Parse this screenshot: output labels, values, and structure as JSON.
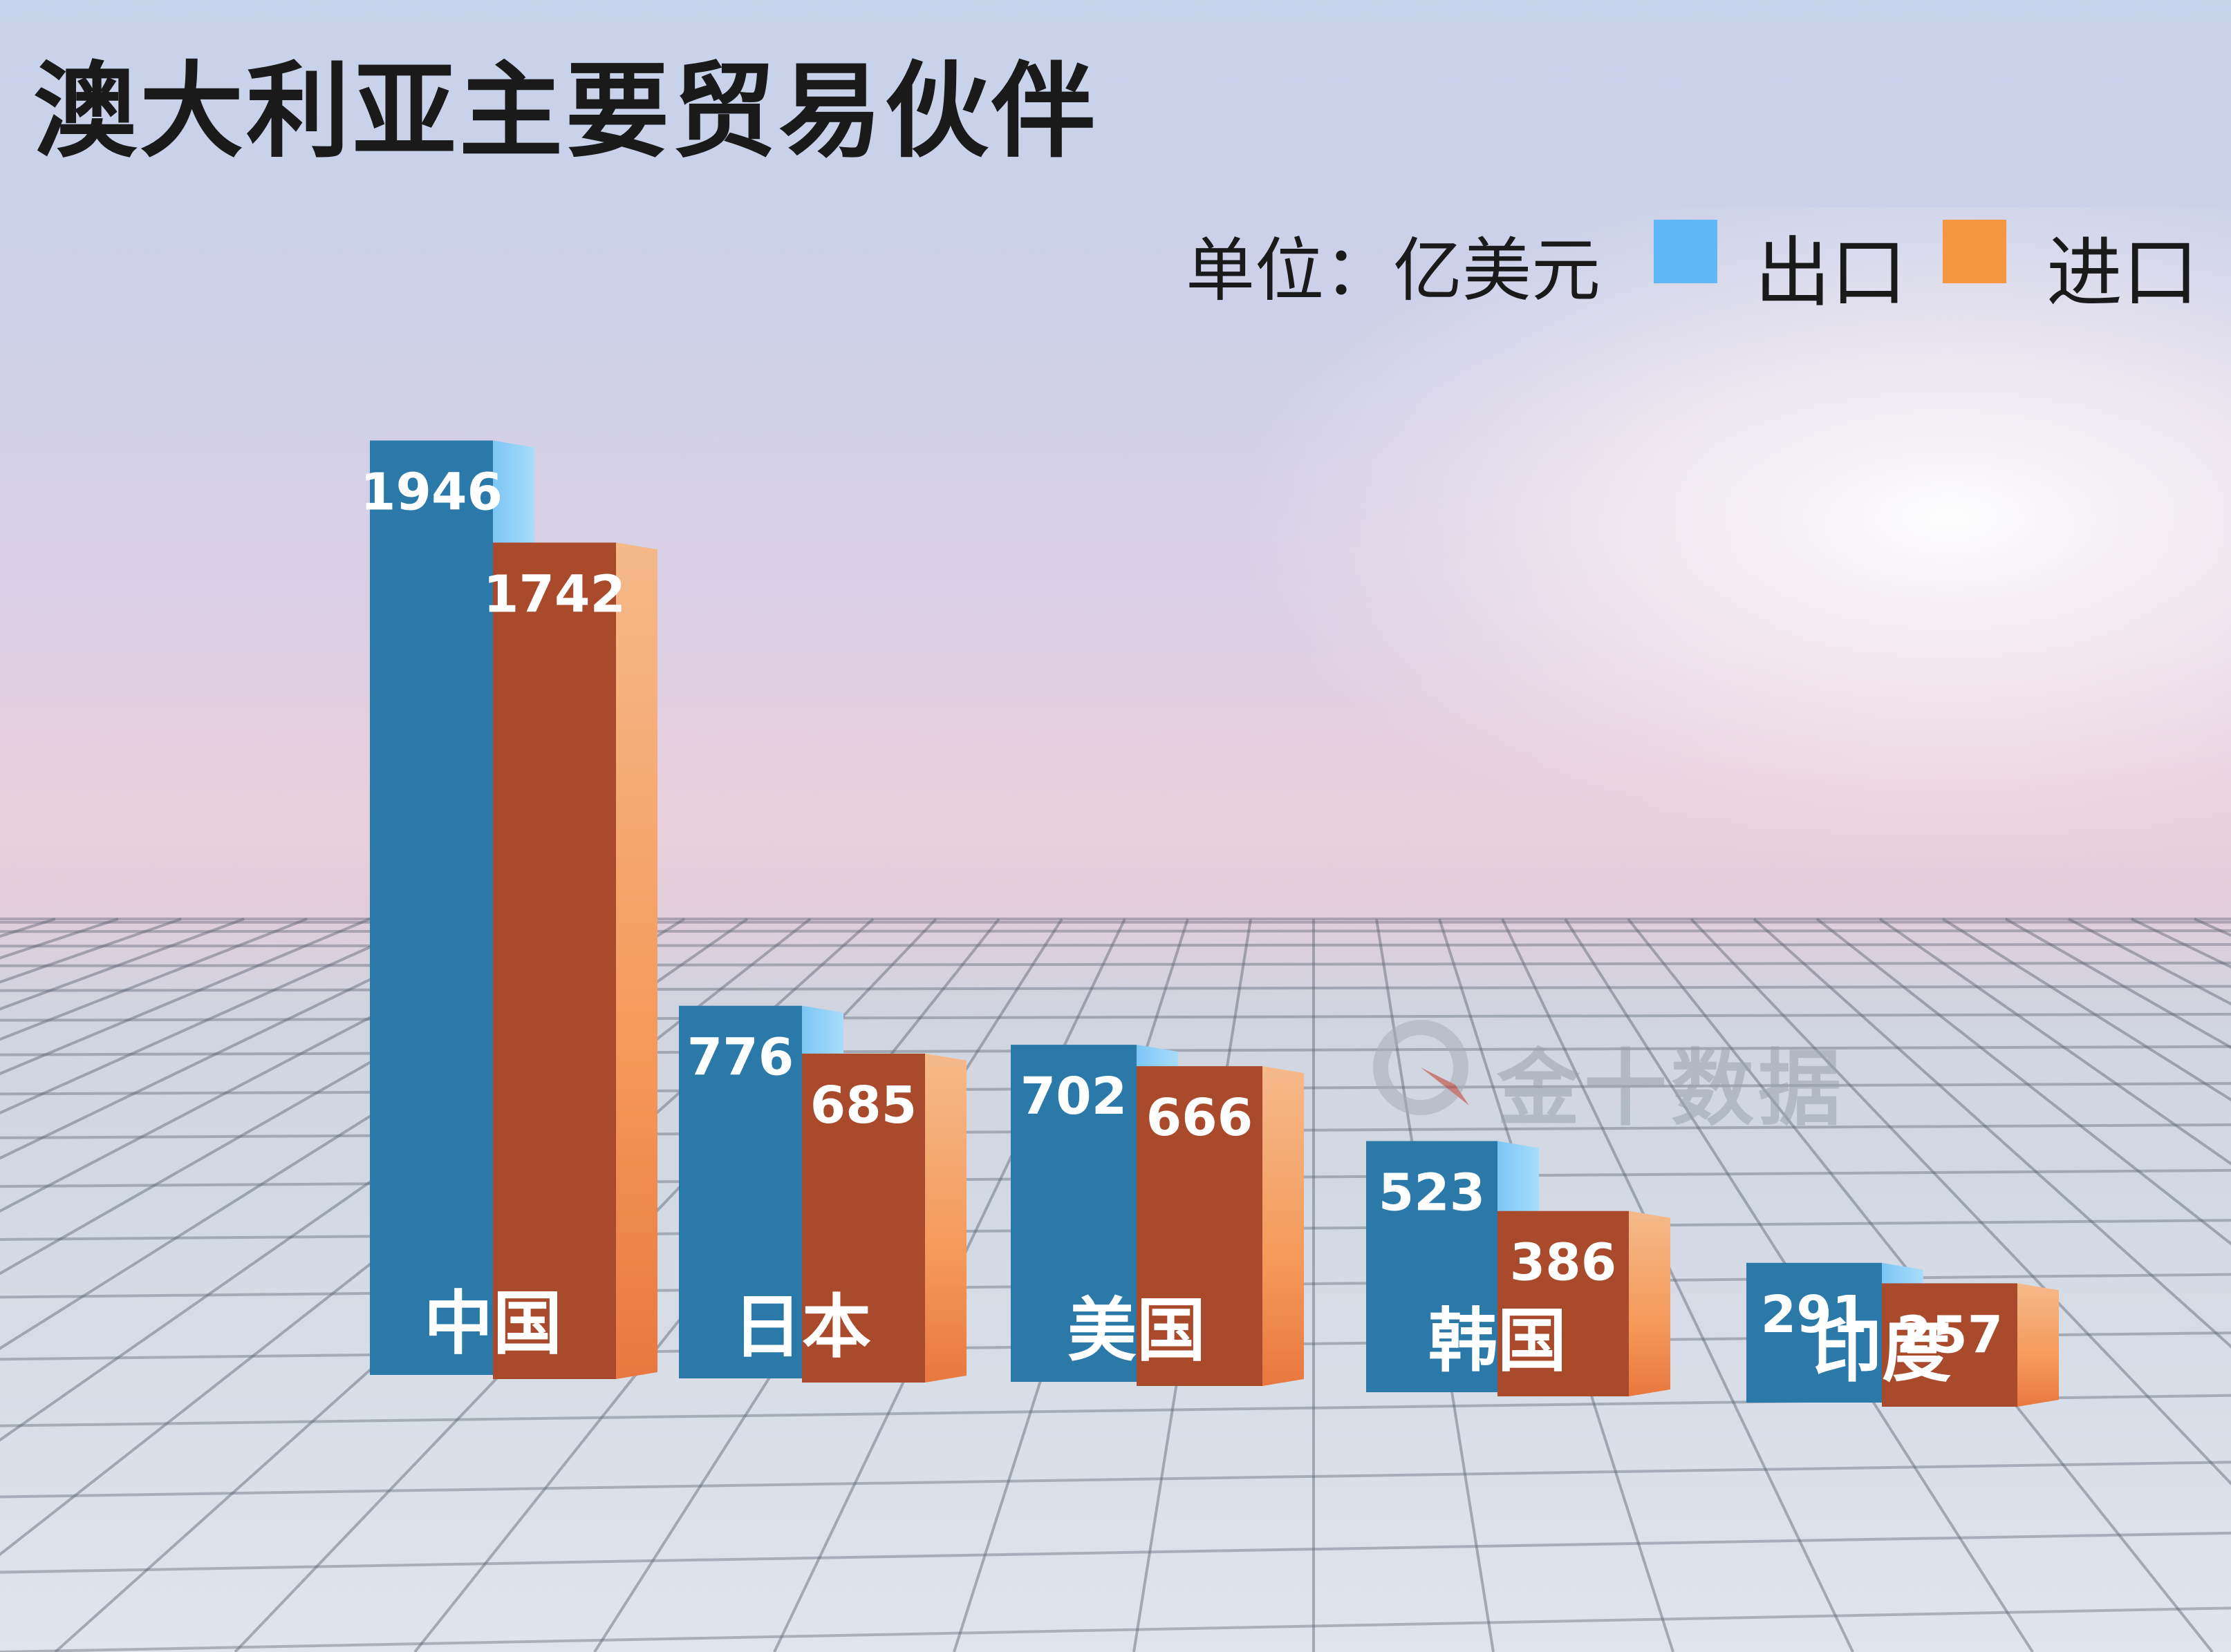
{
  "title": "澳大利亚主要贸易伙伴",
  "unit_label": "单位：亿美元",
  "watermark": {
    "text": "金十数据",
    "icon": "jin10-logo-icon"
  },
  "chart_data": {
    "type": "bar",
    "title": "澳大利亚主要贸易伙伴",
    "unit": "单位：亿美元",
    "categories": [
      "中国",
      "日本",
      "美国",
      "韩国",
      "印度"
    ],
    "series": [
      {
        "name": "出口",
        "color": "#2a79a8",
        "legend_color": "#5fb8f5",
        "values": [
          1946,
          776,
          702,
          523,
          291
        ]
      },
      {
        "name": "进口",
        "color": "#a84a2b",
        "legend_color": "#f6963f",
        "values": [
          1742,
          685,
          666,
          386,
          257
        ]
      }
    ],
    "legend_position": "top-right",
    "grid": false
  }
}
